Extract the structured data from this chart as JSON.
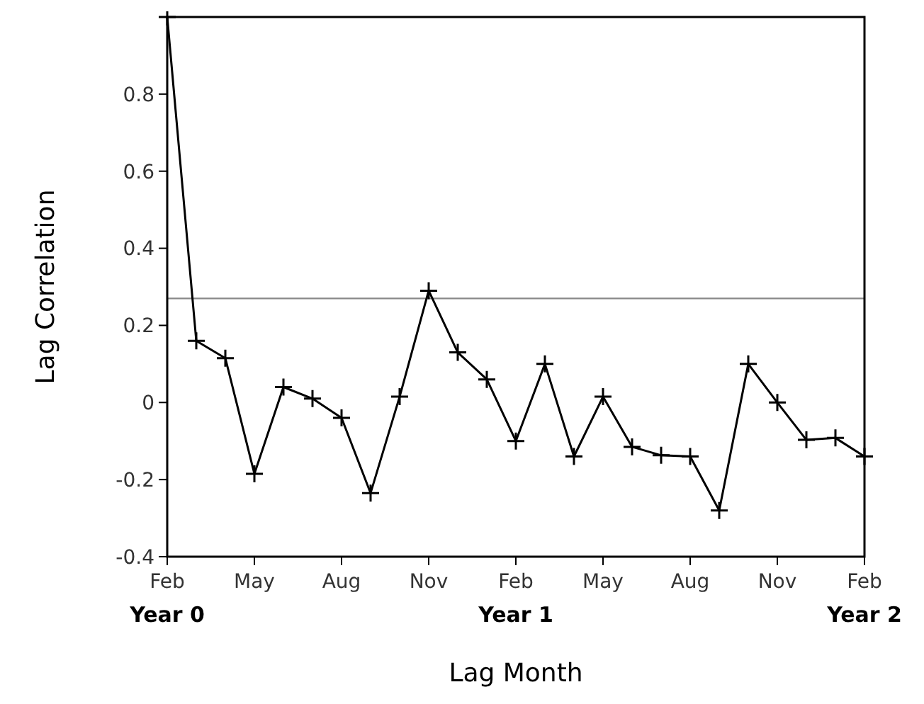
{
  "chart_data": {
    "type": "line",
    "xlabel": "Lag Month",
    "ylabel": "Lag Correlation",
    "categories": [
      "Feb\nYear 0",
      null,
      null,
      "May",
      null,
      null,
      "Aug",
      null,
      null,
      "Nov",
      null,
      null,
      "Feb\nYear 1",
      null,
      null,
      "May",
      null,
      null,
      "Aug",
      null,
      null,
      "Nov",
      null,
      null,
      "Feb\nYear 2"
    ],
    "series": [
      {
        "color": "#000000",
        "values": [
          1.0,
          0.16,
          0.115,
          -0.185,
          0.04,
          0.01,
          -0.04,
          -0.235,
          0.015,
          0.29,
          0.13,
          0.06,
          -0.1,
          0.1,
          -0.14,
          0.015,
          -0.115,
          -0.137,
          -0.14,
          -0.28,
          0.1,
          0.0,
          -0.097,
          -0.092,
          -0.14
        ]
      }
    ],
    "ylim": [
      -0.4,
      1.0
    ],
    "yticks": [
      -0.4,
      -0.2,
      0,
      0.2,
      0.4,
      0.6,
      0.8
    ],
    "ref_lines": [
      {
        "axis": "y",
        "value": 0.27,
        "color": "#888888"
      }
    ],
    "marker": "cross",
    "line_style": "solid",
    "grid": false
  }
}
